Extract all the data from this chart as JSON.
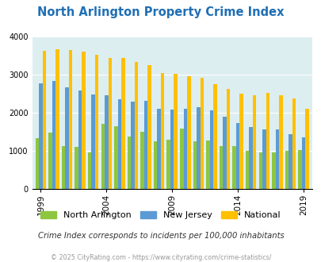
{
  "title": "North Arlington Property Crime Index",
  "years": [
    1999,
    2000,
    2001,
    2002,
    2003,
    2004,
    2005,
    2006,
    2007,
    2008,
    2009,
    2010,
    2011,
    2012,
    2013,
    2014,
    2015,
    2016,
    2017,
    2018,
    2019
  ],
  "north_arlington": [
    1320,
    1480,
    1130,
    1090,
    950,
    1700,
    1650,
    1380,
    1500,
    1250,
    1280,
    1590,
    1250,
    1270,
    1130,
    1130,
    1000,
    950,
    960,
    1005,
    1010
  ],
  "new_jersey": [
    2780,
    2840,
    2660,
    2590,
    2470,
    2450,
    2350,
    2290,
    2310,
    2100,
    2090,
    2100,
    2140,
    2070,
    1900,
    1730,
    1620,
    1560,
    1560,
    1440,
    1350
  ],
  "national": [
    3620,
    3670,
    3640,
    3610,
    3520,
    3450,
    3430,
    3340,
    3250,
    3050,
    3020,
    2960,
    2920,
    2760,
    2620,
    2500,
    2460,
    2510,
    2450,
    2370,
    2110
  ],
  "color_north_arlington": "#8dc63f",
  "color_new_jersey": "#5b9bd5",
  "color_national": "#ffc000",
  "bg_color": "#ddeef0",
  "title_color": "#1f6fb5",
  "subtitle": "Crime Index corresponds to incidents per 100,000 inhabitants",
  "footer": "© 2025 CityRating.com - https://www.cityrating.com/crime-statistics/",
  "ylim": [
    0,
    4000
  ],
  "yticks": [
    0,
    1000,
    2000,
    3000,
    4000
  ],
  "xlabel_years": [
    1999,
    2004,
    2009,
    2014,
    2019
  ]
}
